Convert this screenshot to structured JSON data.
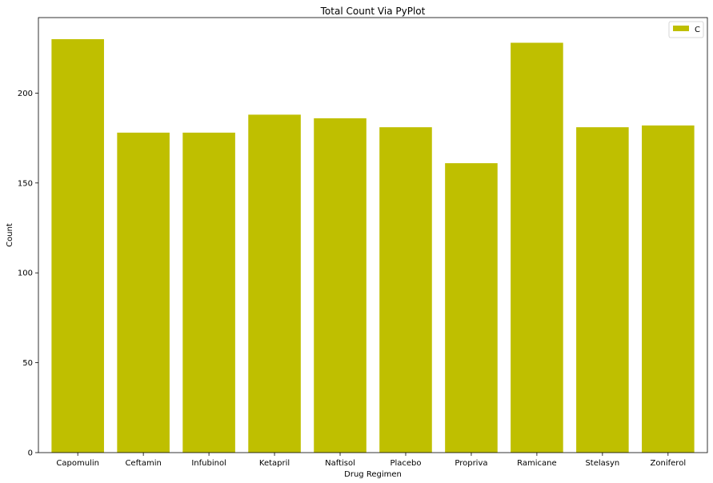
{
  "chart_data": {
    "type": "bar",
    "title": "Total Count Via PyPlot",
    "xlabel": "Drug Regimen",
    "ylabel": "Count",
    "categories": [
      "Capomulin",
      "Ceftamin",
      "Infubinol",
      "Ketapril",
      "Naftisol",
      "Placebo",
      "Propriva",
      "Ramicane",
      "Stelasyn",
      "Zoniferol"
    ],
    "series": [
      {
        "name": "C",
        "values": [
          230,
          178,
          178,
          188,
          186,
          181,
          161,
          228,
          181,
          182
        ]
      }
    ],
    "ylim": [
      0,
      242
    ],
    "yticks": [
      0,
      50,
      100,
      150,
      200
    ],
    "bar_color": "#bfbf00",
    "grid": false,
    "legend_position": "top-right"
  }
}
